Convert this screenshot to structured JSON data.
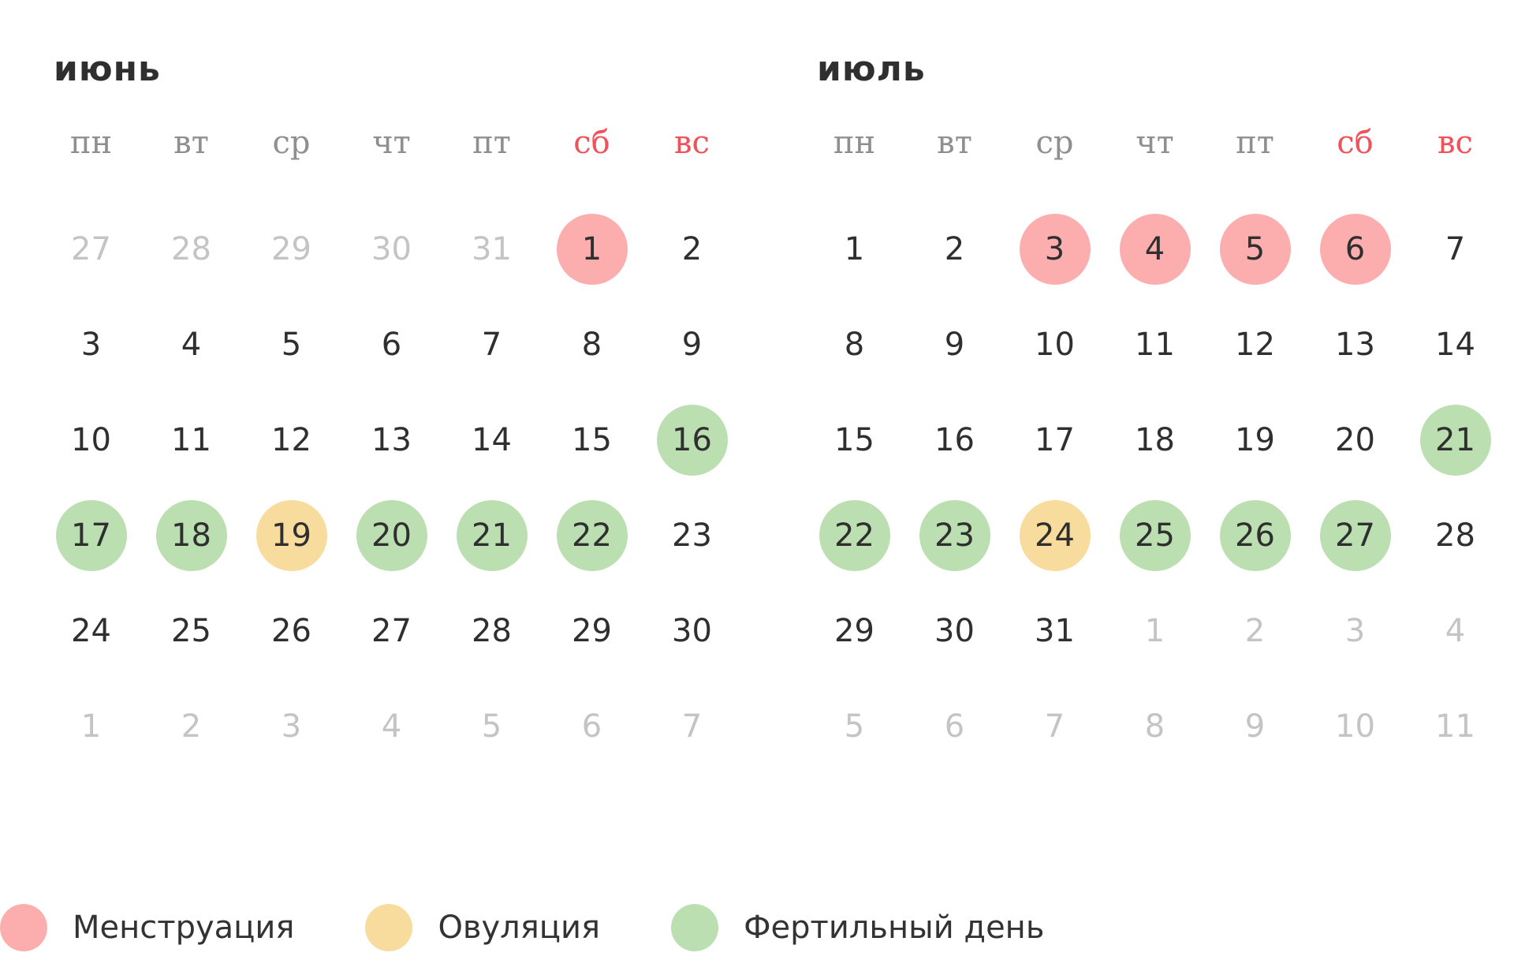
{
  "colors": {
    "menstruation": "#fcaeae",
    "ovulation": "#f8dc9e",
    "fertile": "#bcdfb2",
    "weekend_label": "#f0525a",
    "other_month_day": "#c4c4c4"
  },
  "weekdays": [
    {
      "label": "пн",
      "weekend": false
    },
    {
      "label": "вт",
      "weekend": false
    },
    {
      "label": "ср",
      "weekend": false
    },
    {
      "label": "чт",
      "weekend": false
    },
    {
      "label": "пт",
      "weekend": false
    },
    {
      "label": "сб",
      "weekend": true
    },
    {
      "label": "вс",
      "weekend": true
    }
  ],
  "months": [
    {
      "title": "июнь",
      "days": [
        {
          "n": "27",
          "other": true
        },
        {
          "n": "28",
          "other": true
        },
        {
          "n": "29",
          "other": true
        },
        {
          "n": "30",
          "other": true
        },
        {
          "n": "31",
          "other": true
        },
        {
          "n": "1",
          "mark": "menstruation"
        },
        {
          "n": "2"
        },
        {
          "n": "3"
        },
        {
          "n": "4"
        },
        {
          "n": "5"
        },
        {
          "n": "6"
        },
        {
          "n": "7"
        },
        {
          "n": "8"
        },
        {
          "n": "9"
        },
        {
          "n": "10"
        },
        {
          "n": "11"
        },
        {
          "n": "12"
        },
        {
          "n": "13"
        },
        {
          "n": "14"
        },
        {
          "n": "15"
        },
        {
          "n": "16",
          "mark": "fertile"
        },
        {
          "n": "17",
          "mark": "fertile"
        },
        {
          "n": "18",
          "mark": "fertile"
        },
        {
          "n": "19",
          "mark": "ovulation"
        },
        {
          "n": "20",
          "mark": "fertile"
        },
        {
          "n": "21",
          "mark": "fertile"
        },
        {
          "n": "22",
          "mark": "fertile"
        },
        {
          "n": "23"
        },
        {
          "n": "24"
        },
        {
          "n": "25"
        },
        {
          "n": "26"
        },
        {
          "n": "27"
        },
        {
          "n": "28"
        },
        {
          "n": "29"
        },
        {
          "n": "30"
        },
        {
          "n": "1",
          "other": true
        },
        {
          "n": "2",
          "other": true
        },
        {
          "n": "3",
          "other": true
        },
        {
          "n": "4",
          "other": true
        },
        {
          "n": "5",
          "other": true
        },
        {
          "n": "6",
          "other": true
        },
        {
          "n": "7",
          "other": true
        }
      ]
    },
    {
      "title": "июль",
      "days": [
        {
          "n": "1"
        },
        {
          "n": "2"
        },
        {
          "n": "3",
          "mark": "menstruation"
        },
        {
          "n": "4",
          "mark": "menstruation"
        },
        {
          "n": "5",
          "mark": "menstruation"
        },
        {
          "n": "6",
          "mark": "menstruation"
        },
        {
          "n": "7"
        },
        {
          "n": "8"
        },
        {
          "n": "9"
        },
        {
          "n": "10"
        },
        {
          "n": "11"
        },
        {
          "n": "12"
        },
        {
          "n": "13"
        },
        {
          "n": "14"
        },
        {
          "n": "15"
        },
        {
          "n": "16"
        },
        {
          "n": "17"
        },
        {
          "n": "18"
        },
        {
          "n": "19"
        },
        {
          "n": "20"
        },
        {
          "n": "21",
          "mark": "fertile"
        },
        {
          "n": "22",
          "mark": "fertile"
        },
        {
          "n": "23",
          "mark": "fertile"
        },
        {
          "n": "24",
          "mark": "ovulation"
        },
        {
          "n": "25",
          "mark": "fertile"
        },
        {
          "n": "26",
          "mark": "fertile"
        },
        {
          "n": "27",
          "mark": "fertile"
        },
        {
          "n": "28"
        },
        {
          "n": "29"
        },
        {
          "n": "30"
        },
        {
          "n": "31"
        },
        {
          "n": "1",
          "other": true
        },
        {
          "n": "2",
          "other": true
        },
        {
          "n": "3",
          "other": true
        },
        {
          "n": "4",
          "other": true
        },
        {
          "n": "5",
          "other": true
        },
        {
          "n": "6",
          "other": true
        },
        {
          "n": "7",
          "other": true
        },
        {
          "n": "8",
          "other": true
        },
        {
          "n": "9",
          "other": true
        },
        {
          "n": "10",
          "other": true
        },
        {
          "n": "11",
          "other": true
        }
      ]
    }
  ],
  "legend": [
    {
      "key": "menstruation",
      "label": "Менструация"
    },
    {
      "key": "ovulation",
      "label": "Овуляция"
    },
    {
      "key": "fertile",
      "label": "Фертильный день"
    }
  ]
}
